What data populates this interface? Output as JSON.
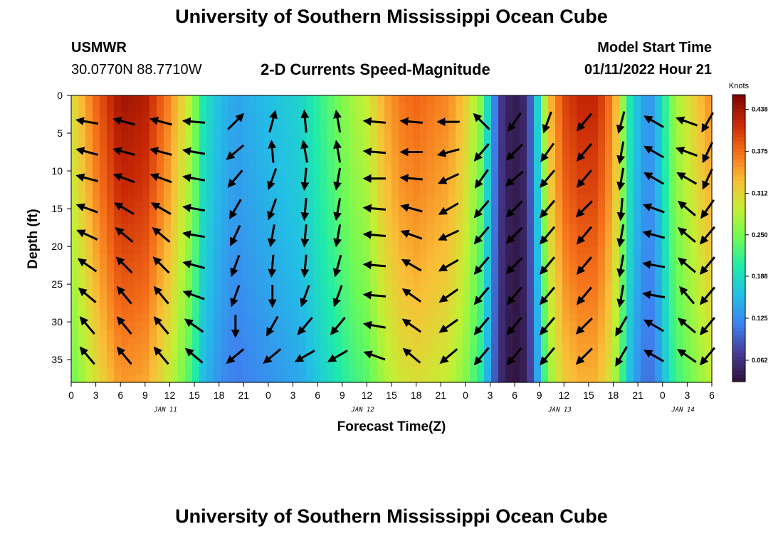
{
  "header": {
    "title": "University of Southern Mississippi Ocean Cube",
    "station": "USMWR",
    "coordinates": "30.0770N  88.7710W",
    "subtitle": "2-D Currents Speed-Magnitude",
    "model_start_label": "Model Start Time",
    "model_start_value": "01/11/2022 Hour 21"
  },
  "footer": {
    "title": "University of Southern Mississippi Ocean Cube"
  },
  "colors": {
    "low": "#30123b",
    "high": "#7a0403",
    "arrow": "#000000"
  },
  "chart_data": {
    "type": "heatmap",
    "title": "2-D Currents Speed-Magnitude",
    "xlabel": "Forecast Time(Z)",
    "ylabel": "Depth (ft)",
    "xlim": [
      0,
      78
    ],
    "ylim": [
      0,
      38
    ],
    "x_tick_values": [
      0,
      3,
      6,
      9,
      12,
      15,
      18,
      21,
      24,
      27,
      30,
      33,
      36,
      39,
      42,
      45,
      48,
      51,
      54,
      57,
      60,
      63,
      66,
      69,
      72,
      75,
      78
    ],
    "x_tick_labels": [
      "0",
      "3",
      "6",
      "9",
      "12",
      "15",
      "18",
      "21",
      "0",
      "3",
      "6",
      "9",
      "12",
      "15",
      "18",
      "21",
      "0",
      "3",
      "6",
      "9",
      "12",
      "15",
      "18",
      "21",
      "0",
      "3",
      "6"
    ],
    "y_tick_values": [
      0,
      5,
      10,
      15,
      20,
      25,
      30,
      35
    ],
    "y_tick_labels": [
      "0",
      "5",
      "10",
      "15",
      "20",
      "25",
      "30",
      "35"
    ],
    "date_labels": [
      {
        "text": "JAN 11",
        "x": 11.5
      },
      {
        "text": "JAN 12",
        "x": 35.5
      },
      {
        "text": "JAN 13",
        "x": 59.5
      },
      {
        "text": "JAN 14",
        "x": 74.5
      }
    ],
    "colorbar": {
      "title": "Knots",
      "min": 0.03,
      "max": 0.46,
      "tick_values": [
        0.438,
        0.375,
        0.312,
        0.25,
        0.188,
        0.125,
        0.062
      ],
      "tick_labels": [
        "0.438",
        "0.375",
        "0.312",
        "0.250",
        "0.188",
        "0.125",
        "0.062"
      ]
    },
    "speed_profile_hours": [
      0,
      3,
      6,
      9,
      12,
      14,
      15,
      16,
      18,
      20,
      22,
      24,
      26,
      28,
      30,
      32,
      34,
      36,
      38,
      40,
      42,
      46,
      48,
      50,
      51,
      52,
      53,
      54,
      55,
      56,
      57,
      58,
      60,
      62,
      64,
      66,
      67,
      68,
      69,
      70,
      71,
      72,
      73,
      74,
      76,
      78
    ],
    "speed_profile_knots": [
      0.3,
      0.38,
      0.44,
      0.43,
      0.36,
      0.3,
      0.26,
      0.2,
      0.16,
      0.14,
      0.15,
      0.16,
      0.17,
      0.18,
      0.21,
      0.24,
      0.27,
      0.29,
      0.34,
      0.37,
      0.38,
      0.36,
      0.32,
      0.25,
      0.16,
      0.08,
      0.05,
      0.04,
      0.05,
      0.1,
      0.2,
      0.32,
      0.4,
      0.42,
      0.42,
      0.36,
      0.28,
      0.2,
      0.16,
      0.13,
      0.14,
      0.19,
      0.25,
      0.28,
      0.32,
      0.36
    ],
    "speed_depth_factor": [
      1.0,
      0.95,
      0.88,
      0.8
    ],
    "arrow_hours": [
      2,
      6.5,
      11,
      15,
      20,
      24.5,
      28.5,
      32.5,
      37,
      41.5,
      46,
      50,
      54,
      58,
      62.5,
      67,
      71,
      75,
      77.5
    ],
    "arrow_depths": [
      3.5,
      7.5,
      11,
      15,
      18.5,
      22.5,
      26.5,
      30.5,
      34.5
    ],
    "arrow_direction_deg": [
      [
        170,
        165,
        165,
        175,
        45,
        75,
        95,
        100,
        175,
        175,
        180,
        135,
        -125,
        -110,
        -130,
        -105,
        150,
        160,
        -120
      ],
      [
        165,
        165,
        165,
        170,
        -140,
        95,
        100,
        100,
        175,
        180,
        -165,
        -130,
        -135,
        -125,
        -130,
        -100,
        150,
        160,
        -115
      ],
      [
        165,
        160,
        160,
        170,
        -130,
        -110,
        -95,
        -100,
        180,
        175,
        -155,
        -125,
        -140,
        -130,
        -130,
        -100,
        150,
        150,
        -115
      ],
      [
        160,
        150,
        150,
        170,
        -120,
        -110,
        -95,
        -100,
        175,
        165,
        -150,
        -130,
        -135,
        -130,
        -135,
        -95,
        160,
        140,
        -125
      ],
      [
        155,
        140,
        140,
        170,
        -115,
        -100,
        -95,
        -100,
        175,
        160,
        -155,
        -130,
        -135,
        -130,
        -130,
        -100,
        165,
        140,
        -130
      ],
      [
        145,
        135,
        135,
        165,
        -110,
        -95,
        -95,
        -105,
        175,
        150,
        -150,
        -130,
        -135,
        -130,
        -130,
        -100,
        170,
        140,
        -130
      ],
      [
        140,
        130,
        130,
        160,
        -110,
        -90,
        -110,
        -110,
        175,
        145,
        -145,
        -130,
        -130,
        -130,
        -130,
        -100,
        170,
        130,
        -130
      ],
      [
        130,
        130,
        130,
        145,
        -90,
        -120,
        -130,
        -130,
        170,
        145,
        -145,
        -130,
        -130,
        -130,
        -135,
        -120,
        150,
        140,
        -130
      ],
      [
        130,
        130,
        130,
        140,
        -140,
        -140,
        -150,
        -150,
        160,
        140,
        -140,
        -130,
        -130,
        -130,
        -135,
        -120,
        150,
        145,
        -130
      ]
    ]
  }
}
